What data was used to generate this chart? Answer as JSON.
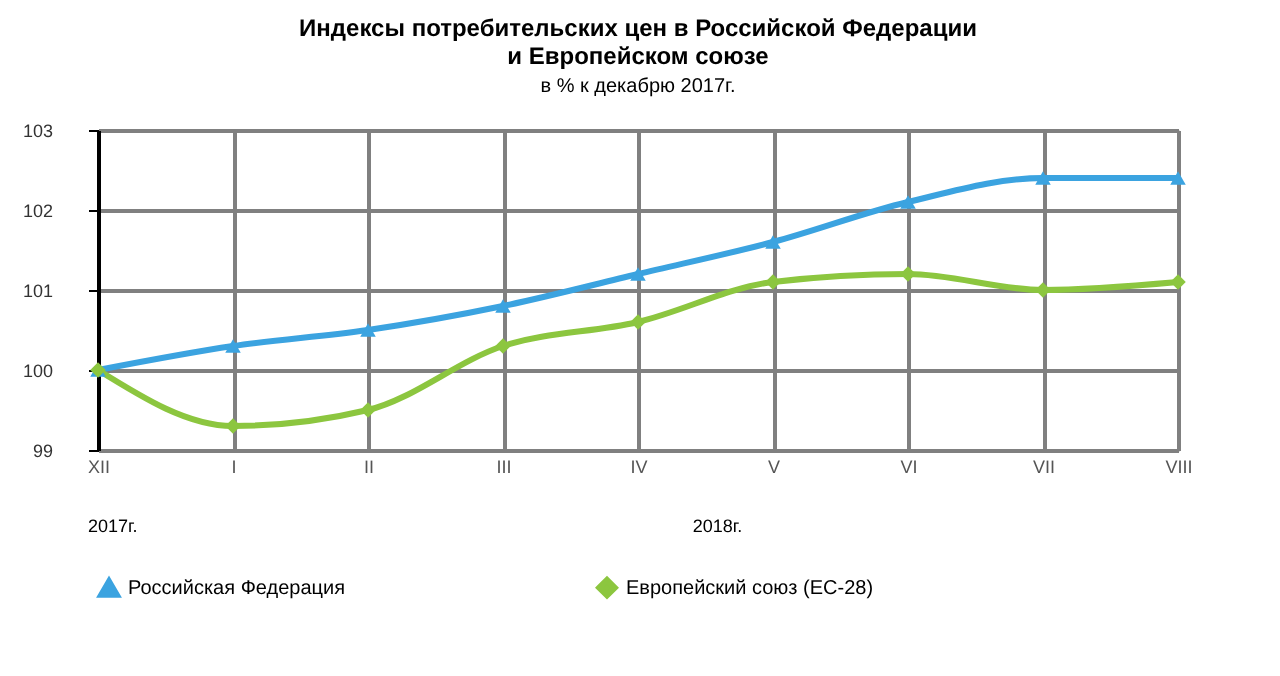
{
  "chart_data": {
    "type": "line",
    "title": "Индексы потребительских цен в Российской Федерации\nи Европейском союзе",
    "subtitle": "в % к декабрю 2017г.",
    "categories": [
      "XII",
      "I",
      "II",
      "III",
      "IV",
      "V",
      "VI",
      "VII",
      "VIII"
    ],
    "series": [
      {
        "name": "Российская Федерация",
        "color": "#3ba3e0",
        "marker": "triangle",
        "values": [
          100,
          100.3,
          100.5,
          100.8,
          101.2,
          101.6,
          102.1,
          102.4,
          102.4
        ]
      },
      {
        "name": "Европейский союз (ЕС-28)",
        "color": "#8cc63f",
        "marker": "diamond",
        "values": [
          100,
          99.3,
          99.5,
          100.3,
          100.6,
          101.1,
          101.2,
          101.0,
          101.1
        ]
      }
    ],
    "ylim": [
      99,
      103
    ],
    "yticks": [
      99,
      100,
      101,
      102,
      103
    ],
    "grid": true,
    "legend": "bottom",
    "annotations": [
      "2017г.",
      "2018г."
    ]
  }
}
